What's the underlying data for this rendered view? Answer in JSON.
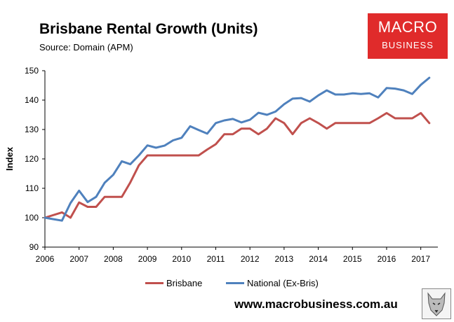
{
  "header": {
    "title": "Brisbane Rental Growth (Units)",
    "source": "Source: Domain (APM)"
  },
  "logo": {
    "line1": "MACRO",
    "line2": "BUSINESS"
  },
  "footer": {
    "website": "www.macrobusiness.com.au"
  },
  "colors": {
    "brisbane": "#c0504d",
    "national": "#4f81bd",
    "logo_red": "#e02b2b"
  },
  "chart_data": {
    "type": "line",
    "title": "Brisbane Rental Growth (Units)",
    "ylabel": "Index",
    "xlabel": "",
    "xlim": [
      2006,
      2017.5
    ],
    "ylim": [
      90,
      150
    ],
    "xticks": [
      2006,
      2007,
      2008,
      2009,
      2010,
      2011,
      2012,
      2013,
      2014,
      2015,
      2016,
      2017
    ],
    "yticks": [
      90,
      100,
      110,
      120,
      130,
      140,
      150
    ],
    "legend_position": "bottom",
    "grid": false,
    "series": [
      {
        "name": "Brisbane",
        "color": "#c0504d",
        "points": [
          [
            2006.0,
            100
          ],
          [
            2006.5,
            101.8
          ],
          [
            2006.75,
            100
          ],
          [
            2007.0,
            105.2
          ],
          [
            2007.25,
            103.7
          ],
          [
            2007.5,
            103.7
          ],
          [
            2007.75,
            107.1
          ],
          [
            2008.0,
            107.1
          ],
          [
            2008.25,
            107.1
          ],
          [
            2008.5,
            112
          ],
          [
            2008.75,
            117.8
          ],
          [
            2009.0,
            121.2
          ],
          [
            2009.25,
            121.2
          ],
          [
            2009.5,
            121.2
          ],
          [
            2009.75,
            121.2
          ],
          [
            2010.0,
            121.2
          ],
          [
            2010.25,
            121.2
          ],
          [
            2010.5,
            121.2
          ],
          [
            2010.75,
            123.2
          ],
          [
            2011.0,
            125
          ],
          [
            2011.25,
            128.4
          ],
          [
            2011.5,
            128.4
          ],
          [
            2011.75,
            130.3
          ],
          [
            2012.0,
            130.3
          ],
          [
            2012.25,
            128.4
          ],
          [
            2012.5,
            130.3
          ],
          [
            2012.75,
            133.8
          ],
          [
            2013.0,
            132.2
          ],
          [
            2013.25,
            128.4
          ],
          [
            2013.5,
            132.2
          ],
          [
            2013.75,
            133.8
          ],
          [
            2014.0,
            132.2
          ],
          [
            2014.25,
            130.3
          ],
          [
            2014.5,
            132.2
          ],
          [
            2014.75,
            132.2
          ],
          [
            2015.0,
            132.2
          ],
          [
            2015.25,
            132.2
          ],
          [
            2015.5,
            132.2
          ],
          [
            2015.75,
            133.8
          ],
          [
            2016.0,
            135.6
          ],
          [
            2016.25,
            133.8
          ],
          [
            2016.5,
            133.8
          ],
          [
            2016.75,
            133.8
          ],
          [
            2017.0,
            135.6
          ],
          [
            2017.25,
            132.2
          ]
        ]
      },
      {
        "name": "National (Ex-Bris)",
        "color": "#4f81bd",
        "points": [
          [
            2006.0,
            100
          ],
          [
            2006.25,
            99.5
          ],
          [
            2006.5,
            99
          ],
          [
            2006.75,
            105
          ],
          [
            2007.0,
            109.2
          ],
          [
            2007.25,
            105.3
          ],
          [
            2007.5,
            107.1
          ],
          [
            2007.75,
            111.9
          ],
          [
            2008.0,
            114.6
          ],
          [
            2008.25,
            119.2
          ],
          [
            2008.5,
            118.2
          ],
          [
            2008.75,
            121.2
          ],
          [
            2009.0,
            124.6
          ],
          [
            2009.25,
            123.8
          ],
          [
            2009.5,
            124.5
          ],
          [
            2009.75,
            126.3
          ],
          [
            2010.0,
            127.2
          ],
          [
            2010.25,
            131.1
          ],
          [
            2010.5,
            129.8
          ],
          [
            2010.75,
            128.6
          ],
          [
            2011.0,
            132.2
          ],
          [
            2011.25,
            133.1
          ],
          [
            2011.5,
            133.6
          ],
          [
            2011.75,
            132.4
          ],
          [
            2012.0,
            133.3
          ],
          [
            2012.25,
            135.7
          ],
          [
            2012.5,
            135
          ],
          [
            2012.75,
            136.1
          ],
          [
            2013.0,
            138.6
          ],
          [
            2013.25,
            140.5
          ],
          [
            2013.5,
            140.7
          ],
          [
            2013.75,
            139.5
          ],
          [
            2014.0,
            141.6
          ],
          [
            2014.25,
            143.3
          ],
          [
            2014.5,
            141.9
          ],
          [
            2014.75,
            141.9
          ],
          [
            2015.0,
            142.3
          ],
          [
            2015.25,
            142.1
          ],
          [
            2015.5,
            142.3
          ],
          [
            2015.75,
            140.9
          ],
          [
            2016.0,
            144.1
          ],
          [
            2016.25,
            143.9
          ],
          [
            2016.5,
            143.3
          ],
          [
            2016.75,
            142.1
          ],
          [
            2017.0,
            145.2
          ],
          [
            2017.25,
            147.6
          ]
        ]
      }
    ]
  }
}
